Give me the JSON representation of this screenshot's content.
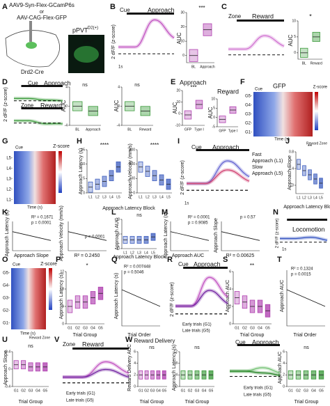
{
  "panels": [
    {
      "letter": "A",
      "texts": [
        "AAV9-Syn-Flex-GCamP6s",
        "or",
        "AAV-CAG-Flex-GFP",
        "pPVT",
        "D2(+)",
        "Drd2-Cre",
        "pPVT"
      ]
    },
    {
      "letter": "B",
      "texts": [
        "Cue",
        "Approach",
        "2 dF/F (z-score)",
        "1s",
        "AUC",
        "***"
      ]
    },
    {
      "letter": "C",
      "texts": [
        "Zone",
        "Reward",
        "AUC",
        "*"
      ]
    },
    {
      "letter": "D",
      "texts": [
        "Cue",
        "Approach",
        "Zone",
        "Reward",
        "2 dF/F (z-score)",
        "AUC",
        "ns",
        "AUC",
        "ns"
      ]
    },
    {
      "letter": "E",
      "texts": [
        "Approach",
        "Reward",
        "AUC",
        "***",
        "AUC",
        "*"
      ]
    },
    {
      "letter": "F",
      "texts": [
        "GFP",
        "Cue",
        "Z-score",
        "G5-",
        "G4-",
        "G3-",
        "G2-",
        "G1-",
        "Time (s)",
        "Reward Zone"
      ]
    },
    {
      "letter": "G",
      "texts": [
        "Cue",
        "Z-score",
        "L5-",
        "L4-",
        "L3-",
        "L2-",
        "L1-",
        "Time (s)"
      ]
    },
    {
      "letter": "H",
      "texts": [
        "Approach Latency (s)",
        "Approach Latency Block",
        "****",
        "Approach Velocity (mm/s)",
        "****"
      ]
    },
    {
      "letter": "I",
      "texts": [
        "Cue",
        "Approach",
        "Fast",
        "Approach (L1)",
        "Slow",
        "Approach (L5)",
        "2 dF/F (z-score)",
        "1s"
      ]
    },
    {
      "letter": "J",
      "texts": [
        "Approach Slope",
        "Approach Latency Block",
        "**"
      ]
    },
    {
      "letter": "K",
      "texts": [
        "Approach Latency (s)",
        "Approach Slope",
        "R² = 0.1671",
        "p = 0.0001",
        "Approach Velocity (mm/s)",
        "R² = 0.2450",
        "p = 0.0001"
      ]
    },
    {
      "letter": "L",
      "texts": [
        "Approach AUC",
        "Approach Latency Block",
        "ns"
      ]
    },
    {
      "letter": "M",
      "texts": [
        "Approach Latency (s)",
        "Approach AUC",
        "R² = 0.0001",
        "p = 0.9085",
        "Approach Slope",
        "R² = 0.00625",
        "p = 0.57"
      ]
    },
    {
      "letter": "N",
      "texts": [
        "Locomotion",
        "2 dF/F (z-score)",
        "1s"
      ]
    },
    {
      "letter": "O",
      "texts": [
        "Cue",
        "Z-score",
        "G5-",
        "G4-",
        "G3-",
        "G2-",
        "G1-",
        "Time (s)",
        "Reward Zone"
      ]
    },
    {
      "letter": "P",
      "texts": [
        "Approach Latency (s)",
        "Trial Group",
        "*"
      ]
    },
    {
      "letter": "Q",
      "texts": [
        "R² = 0.007448",
        "p = 0.5046",
        "Approach Latency (s)",
        "Trial Order"
      ]
    },
    {
      "letter": "R",
      "texts": [
        "Cue",
        "Approach",
        "Early trials (G1)",
        "Late trials (G5)",
        "2 dF/F (z-score)"
      ]
    },
    {
      "letter": "S",
      "texts": [
        "Approach AUC",
        "Trial Group",
        "**"
      ]
    },
    {
      "letter": "T",
      "texts": [
        "R² = 0.1324",
        "p = 0.0015",
        "Approach AUC",
        "Trial Order"
      ]
    },
    {
      "letter": "U",
      "texts": [
        "Approach Slope",
        "Trial Group",
        "ns"
      ]
    },
    {
      "letter": "V",
      "texts": [
        "Zone",
        "Reward",
        "Early trials (G1)",
        "Late trials (G5)",
        "Reward Delivery",
        "Reward Delivery AUC",
        "Trial Group",
        "ns"
      ]
    },
    {
      "letter": "W",
      "texts": [
        "Approach Latency (s)",
        "Trial Group",
        "ns",
        "Cue",
        "Approach",
        "Early trials (G1)",
        "Late trials (G5)",
        "Approach AUC",
        "Trial Group",
        "ns"
      ]
    }
  ],
  "charts": [
    {
      "type": "box",
      "categories": [
        "BL",
        "Approach"
      ],
      "values": [
        0,
        18
      ],
      "ylim": [
        -5,
        30
      ],
      "yticks": [
        0,
        10,
        20,
        30
      ],
      "color": "#b040b0"
    },
    {
      "type": "box",
      "categories": [
        "BL",
        "Reward"
      ],
      "values": [
        0,
        5
      ],
      "ylim": [
        -2,
        10
      ],
      "yticks": [
        0,
        5,
        10
      ],
      "color": "#3a9a3a"
    },
    {
      "type": "box",
      "categories": [
        "BL",
        "Approach"
      ],
      "values": [
        0,
        -1
      ],
      "ylim": [
        -4,
        4
      ],
      "yticks": [
        -4,
        0,
        4
      ],
      "color": "#3a9a3a"
    },
    {
      "type": "box",
      "categories": [
        "BL",
        "Reward"
      ],
      "values": [
        0,
        -1
      ],
      "ylim": [
        -4,
        4
      ],
      "yticks": [
        -4,
        0,
        4
      ],
      "color": "#3a9a3a"
    },
    {
      "type": "box",
      "categories": [
        "GFP",
        "Type I"
      ],
      "values": [
        -1,
        8
      ],
      "ylim": [
        -10,
        20
      ],
      "yticks": [
        -10,
        0,
        10,
        20
      ],
      "color": "#b040b0"
    },
    {
      "type": "box",
      "categories": [
        "GFP",
        "Type I"
      ],
      "values": [
        -1,
        4
      ],
      "ylim": [
        -5,
        10
      ],
      "yticks": [
        -5,
        0,
        5,
        10
      ],
      "color": "#b040b0"
    },
    {
      "type": "box",
      "categories": [
        "L1",
        "L2",
        "L3",
        "L4",
        "L5"
      ],
      "values": [
        2,
        3,
        4,
        6,
        9
      ],
      "ylim": [
        0,
        15
      ],
      "yticks": [
        0,
        5,
        10,
        15
      ],
      "color": "#4060c0"
    },
    {
      "type": "box",
      "categories": [
        "L1",
        "L2",
        "L3",
        "L4",
        "L5"
      ],
      "values": [
        180,
        150,
        120,
        90,
        60
      ],
      "ylim": [
        0,
        300
      ],
      "yticks": [
        0,
        100,
        200,
        300
      ],
      "color": "#4060c0"
    },
    {
      "type": "box",
      "categories": [
        "L1",
        "L2",
        "L3",
        "L4",
        "L5"
      ],
      "values": [
        0.5,
        0.35,
        0.25,
        0.15,
        0.05
      ],
      "ylim": [
        -0.2,
        0.8
      ],
      "yticks": [
        0,
        0.4,
        0.8
      ],
      "color": "#4060c0"
    },
    {
      "type": "box",
      "categories": [
        "L1",
        "L2",
        "L3",
        "L4",
        "L5"
      ],
      "values": [
        3,
        3,
        3,
        3,
        4
      ],
      "ylim": [
        0,
        10
      ],
      "yticks": [
        0,
        5,
        10
      ],
      "color": "#4060c0"
    },
    {
      "type": "box",
      "categories": [
        "G1",
        "G2",
        "G3",
        "G4",
        "G5"
      ],
      "values": [
        4,
        5,
        5,
        6,
        7
      ],
      "ylim": [
        0,
        12
      ],
      "yticks": [
        0,
        4,
        8,
        12
      ],
      "color": "#b040b0"
    },
    {
      "type": "box",
      "categories": [
        "G1",
        "G2",
        "G3",
        "G4",
        "G5"
      ],
      "values": [
        3,
        2.5,
        2,
        2,
        1.5
      ],
      "ylim": [
        0,
        6
      ],
      "yticks": [
        0,
        2,
        4,
        6
      ],
      "color": "#b040b0"
    },
    {
      "type": "box",
      "categories": [
        "G1",
        "G2",
        "G3",
        "G4",
        "G5"
      ],
      "values": [
        0.1,
        0.1,
        0.05,
        0.05,
        0.05
      ],
      "ylim": [
        -0.4,
        0.4
      ],
      "yticks": [
        -0.4,
        0,
        0.4
      ],
      "color": "#b040b0"
    },
    {
      "type": "box",
      "categories": [
        "G1",
        "G2",
        "G3",
        "G4",
        "G5"
      ],
      "values": [
        2,
        2,
        2,
        2,
        2
      ],
      "ylim": [
        0,
        6
      ],
      "yticks": [
        0,
        2,
        4,
        6
      ],
      "color": "#b040b0"
    },
    {
      "type": "box",
      "categories": [
        "G1",
        "G2",
        "G3",
        "G4",
        "G5"
      ],
      "values": [
        4,
        4,
        4,
        4,
        4
      ],
      "ylim": [
        0,
        12
      ],
      "yticks": [
        0,
        4,
        8,
        12
      ],
      "color": "#3a9a3a"
    },
    {
      "type": "box",
      "categories": [
        "G1",
        "G2",
        "G3",
        "G4",
        "G5"
      ],
      "values": [
        2,
        2,
        2,
        2,
        2
      ],
      "ylim": [
        0,
        6
      ],
      "yticks": [
        0,
        2,
        4,
        6
      ],
      "color": "#3a9a3a"
    }
  ]
}
